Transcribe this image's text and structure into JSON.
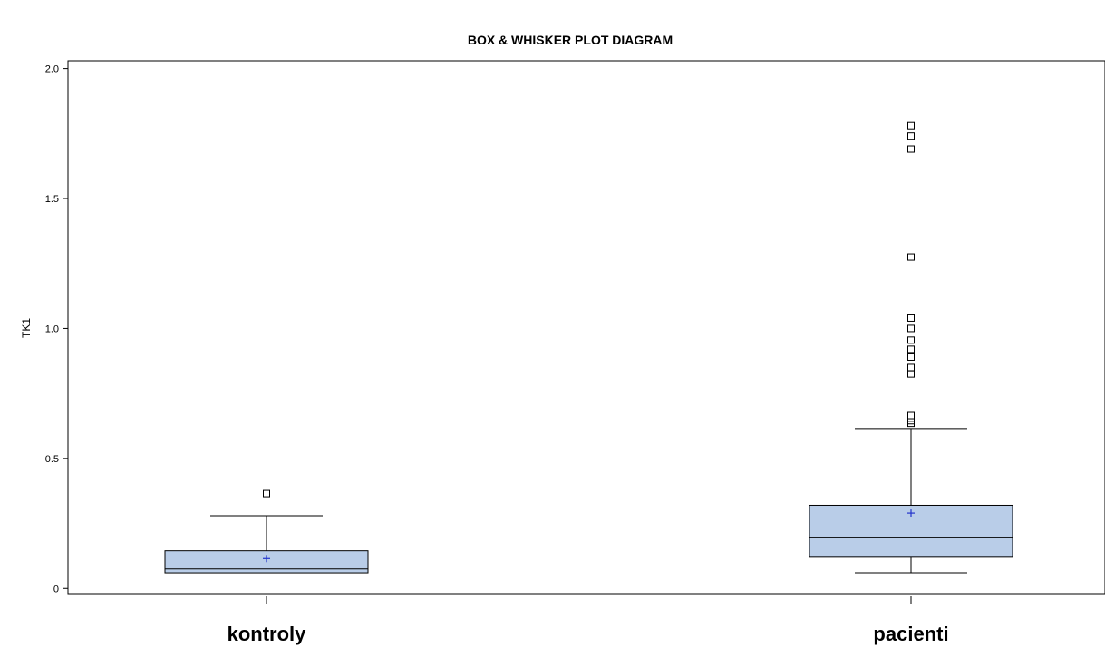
{
  "chart_data": {
    "type": "box",
    "title": "BOX & WHISKER PLOT DIAGRAM",
    "xlabel": "",
    "ylabel": "TK1",
    "ylim": [
      -0.02,
      2.03
    ],
    "yticks": [
      0,
      0.5,
      1.0,
      1.5,
      2.0
    ],
    "ytick_labels": [
      "0",
      "0.5",
      "1.0",
      "1.5",
      "2.0"
    ],
    "grid": false,
    "categories": [
      "kontroly",
      "pacienti"
    ],
    "box_color": "#b9cde8",
    "mean_color": "#2233cc",
    "boxes": [
      {
        "name": "kontroly",
        "whisker_low": 0.06,
        "q1": 0.06,
        "median": 0.075,
        "q3": 0.145,
        "whisker_high": 0.28,
        "mean": 0.115,
        "outliers": [
          0.365
        ]
      },
      {
        "name": "pacienti",
        "whisker_low": 0.06,
        "q1": 0.12,
        "median": 0.195,
        "q3": 0.32,
        "whisker_high": 0.615,
        "mean": 0.29,
        "outliers": [
          0.635,
          0.645,
          0.655,
          0.665,
          0.825,
          0.85,
          0.89,
          0.92,
          0.955,
          1.0,
          1.04,
          1.275,
          1.69,
          1.74,
          1.78
        ]
      }
    ]
  }
}
